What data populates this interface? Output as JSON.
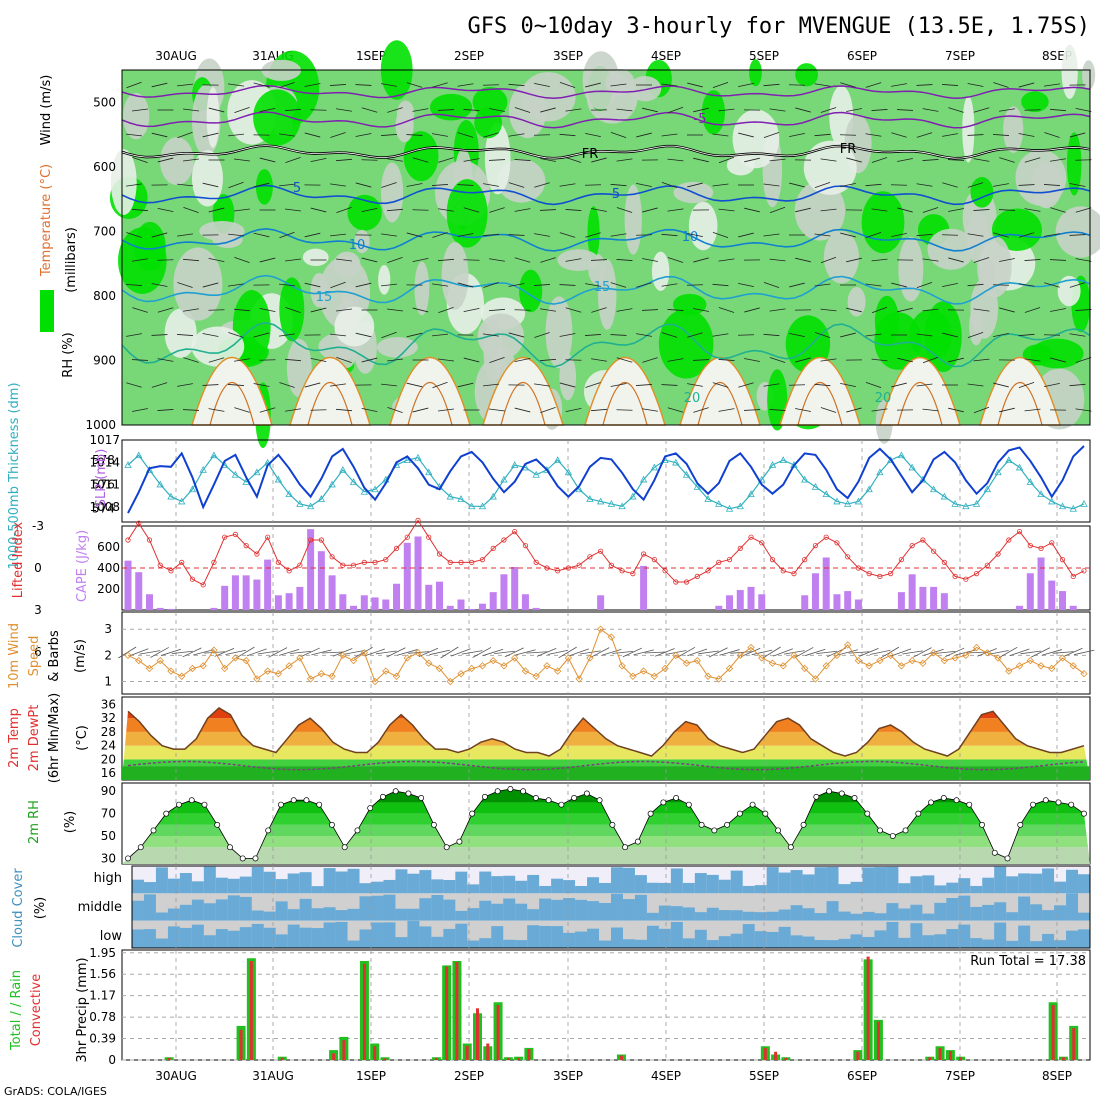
{
  "title": "GFS 0~10day 3-hourly for MVENGUE (13.5E, 1.75S)",
  "footer": "GrADS: COLA/IGES",
  "dates": [
    "30AUG",
    "31AUG",
    "1SEP",
    "2SEP",
    "3SEP",
    "4SEP",
    "5SEP",
    "6SEP",
    "7SEP",
    "8SEP"
  ],
  "colors": {
    "green_bright": "#00e000",
    "green_mid": "#78d878",
    "grey_light": "#c8d2c8",
    "cloud_blue": "#6aaad6",
    "cloud_grey": "#d0d0d0",
    "cloud_pale": "#f0eef8",
    "cape": "#c080f0",
    "lifted": "#e03030",
    "wind10": "#e09030",
    "thickness": "#30b0c0",
    "slp": "#1040d0",
    "precip_total": "#20c020",
    "precip_conv": "#e03030"
  },
  "chart_data": [
    {
      "panel": "upper-air",
      "type": "heatmap",
      "ylabel_parts": [
        "RH (%)",
        "Temperature (°C)",
        "Wind (m/s)"
      ],
      "ylabel_units": "(millibars)",
      "yticks": [
        "500",
        "600",
        "700",
        "800",
        "900",
        "1000"
      ],
      "ylim": [
        1000,
        450
      ],
      "contour_labels": [
        "-5",
        "FR",
        "FR",
        "5",
        "5",
        "10",
        "10",
        "15",
        "15",
        "20",
        "20"
      ]
    },
    {
      "panel": "thickness-slp",
      "type": "line",
      "ylabel_left": "1000-500mb Thickness (dm)",
      "ylabel_right": "SLP (mb)",
      "yticks_left": [
        "578",
        "576",
        "574"
      ],
      "yticks_right": [
        "1017",
        "1014",
        "1011",
        "1008"
      ],
      "series": [
        {
          "name": "Thickness",
          "values": [
            577.6,
            578.4,
            577.2,
            576.0,
            575.0,
            574.6,
            575.6,
            577.2,
            578.4,
            577.6,
            576.8,
            576.2,
            577.0,
            577.8,
            576.4,
            575.2,
            574.4,
            574.2,
            574.8,
            576.0,
            577.2,
            576.2,
            575.4,
            575.6,
            576.4,
            577.6,
            578.0,
            578.2,
            577.0,
            575.8,
            575.0,
            574.8,
            574.2,
            574.2,
            575.0,
            576.4,
            577.6,
            577.4,
            576.8,
            577.2,
            578.0,
            577.0,
            575.6,
            574.8,
            574.6,
            574.4,
            574.2,
            575.0,
            576.4,
            577.4,
            578.0,
            577.8,
            576.8,
            575.8,
            574.8,
            574.4,
            574.0,
            574.2,
            575.2,
            576.4,
            577.6,
            578.0,
            577.6,
            576.4,
            575.8,
            575.2,
            574.6,
            574.4,
            574.6,
            575.6,
            577.0,
            578.0,
            578.4,
            577.4,
            576.4,
            575.6,
            575.0,
            574.4,
            574.2,
            574.4,
            575.6,
            577.0,
            578.0,
            577.4,
            576.2,
            575.2,
            574.6,
            574.2,
            574.0,
            574.4
          ]
        },
        {
          "name": "SLP",
          "values": [
            1007.2,
            1010.0,
            1013.2,
            1013.5,
            1013.4,
            1015.2,
            1012.0,
            1008.0,
            1011.0,
            1014.2,
            1015.0,
            1012.0,
            1009.4,
            1013.6,
            1015.0,
            1013.2,
            1011.0,
            1009.4,
            1011.8,
            1014.8,
            1015.8,
            1013.4,
            1010.6,
            1009.0,
            1011.2,
            1014.0,
            1014.8,
            1013.2,
            1011.0,
            1010.4,
            1012.8,
            1014.8,
            1015.4,
            1014.0,
            1011.8,
            1010.0,
            1011.4,
            1013.8,
            1014.4,
            1013.0,
            1010.8,
            1009.4,
            1010.8,
            1013.4,
            1014.6,
            1014.4,
            1012.6,
            1010.4,
            1009.0,
            1011.6,
            1014.8,
            1015.2,
            1013.8,
            1011.2,
            1009.8,
            1011.2,
            1014.2,
            1015.2,
            1013.4,
            1011.0,
            1009.8,
            1011.0,
            1013.6,
            1015.2,
            1015.0,
            1013.0,
            1010.4,
            1009.2,
            1011.4,
            1014.6,
            1015.8,
            1014.4,
            1012.2,
            1010.0,
            1011.6,
            1014.4,
            1015.4,
            1014.0,
            1011.6,
            1009.8,
            1011.2,
            1014.0,
            1015.6,
            1016.0,
            1014.2,
            1012.0,
            1009.4,
            1011.6,
            1014.8,
            1016.2
          ]
        }
      ]
    },
    {
      "panel": "cape-lifted",
      "type": "bar",
      "ylabel_left": "Lifted Index",
      "ylabel_right": "CAPE (J/kg)",
      "yticks_left": [
        "-3",
        "0",
        "3",
        "6"
      ],
      "yticks_right": [
        "600",
        "400",
        "200"
      ],
      "cape_values": [
        470,
        360,
        150,
        20,
        10,
        0,
        0,
        0,
        20,
        230,
        330,
        330,
        290,
        480,
        140,
        160,
        220,
        770,
        560,
        330,
        150,
        40,
        140,
        120,
        100,
        250,
        640,
        700,
        240,
        270,
        40,
        100,
        10,
        60,
        170,
        340,
        410,
        150,
        20,
        0,
        0,
        0,
        0,
        0,
        140,
        0,
        0,
        0,
        420,
        0,
        0,
        0,
        0,
        0,
        0,
        40,
        140,
        190,
        220,
        150,
        0,
        0,
        0,
        140,
        350,
        500,
        150,
        180,
        100,
        0,
        0,
        0,
        170,
        340,
        220,
        220,
        160,
        0,
        0,
        0,
        0,
        0,
        0,
        40,
        350,
        500,
        280,
        180,
        40,
        0
      ],
      "lifted_values": [
        -2.0,
        -3.2,
        -2.0,
        -0.2,
        0.2,
        -0.4,
        0.8,
        1.2,
        -0.4,
        -2.2,
        -2.4,
        -1.6,
        -1.0,
        -2.2,
        -0.4,
        0.2,
        -0.2,
        -2.0,
        -2.0,
        -0.8,
        -0.2,
        -0.2,
        -0.4,
        -0.4,
        -0.6,
        -1.4,
        -2.2,
        -3.4,
        -2.2,
        -1.0,
        -0.4,
        -0.4,
        -0.4,
        -0.6,
        -1.4,
        -2.0,
        -2.6,
        -1.6,
        -0.4,
        0.0,
        0.2,
        0.0,
        -0.2,
        -0.8,
        -1.2,
        -0.2,
        0.2,
        0.4,
        -1.0,
        -0.6,
        0.2,
        1.0,
        1.0,
        0.6,
        0.2,
        -0.4,
        -0.6,
        -1.4,
        -2.2,
        -1.8,
        -0.6,
        0.2,
        0.4,
        -0.6,
        -1.6,
        -2.2,
        -1.8,
        -0.8,
        0.0,
        0.4,
        0.6,
        0.4,
        -0.6,
        -1.6,
        -2.0,
        -1.2,
        -0.4,
        0.6,
        0.8,
        0.4,
        -0.2,
        -1.0,
        -2.0,
        -2.6,
        -1.6,
        -1.4,
        -1.8,
        -0.6,
        0.6,
        0.2
      ]
    },
    {
      "panel": "wind10",
      "type": "line",
      "ylabel": "10m Wind Speed & Barbs (m/s)",
      "yticks": [
        "3",
        "2",
        "1"
      ],
      "values": [
        2.0,
        1.8,
        1.5,
        1.8,
        1.4,
        1.2,
        1.5,
        1.6,
        2.2,
        1.5,
        1.9,
        1.8,
        1.1,
        1.4,
        1.3,
        1.6,
        1.9,
        1.1,
        1.3,
        1.2,
        2.0,
        1.8,
        2.1,
        1.0,
        1.4,
        1.2,
        1.9,
        2.1,
        1.7,
        1.5,
        1.0,
        1.3,
        1.5,
        1.6,
        1.8,
        1.6,
        1.9,
        1.4,
        1.2,
        1.6,
        1.4,
        1.9,
        1.1,
        1.9,
        3.0,
        2.7,
        1.6,
        1.2,
        1.4,
        1.2,
        1.5,
        2.0,
        1.7,
        1.8,
        1.2,
        1.1,
        1.5,
        2.0,
        2.3,
        1.9,
        1.7,
        1.6,
        2.0,
        1.5,
        1.1,
        1.6,
        2.0,
        2.4,
        1.8,
        1.6,
        1.8,
        2.0,
        1.6,
        1.8,
        1.7,
        2.1,
        1.8,
        1.9,
        2.0,
        2.3,
        2.1,
        1.9,
        1.4,
        1.6,
        1.8,
        1.6,
        1.5,
        1.9,
        1.6,
        1.3
      ]
    },
    {
      "panel": "temp2m",
      "type": "area",
      "ylabel": "2m Temp 2m DewPt (6hr Min/Max) (°C)",
      "yticks": [
        "36",
        "32",
        "28",
        "24",
        "20",
        "16"
      ],
      "temp_values": [
        34,
        31,
        27,
        24,
        23,
        23,
        26,
        32,
        35,
        33,
        27,
        24,
        23,
        22,
        26,
        30,
        32,
        29,
        25,
        23,
        22,
        22,
        25,
        30,
        33,
        30,
        26,
        23,
        23,
        22,
        23,
        25,
        26,
        25,
        23,
        22,
        22,
        21,
        23,
        28,
        32,
        29,
        26,
        24,
        23,
        22,
        21,
        24,
        28,
        31,
        30,
        26,
        24,
        23,
        22,
        23,
        27,
        31,
        32,
        30,
        26,
        24,
        22,
        21,
        22,
        25,
        29,
        30,
        28,
        25,
        23,
        22,
        21,
        23,
        28,
        33,
        34,
        30,
        26,
        24,
        23,
        22,
        22,
        23,
        24
      ]
    },
    {
      "panel": "rh2m",
      "type": "area",
      "ylabel": "2m RH (%)",
      "yticks": [
        "90",
        "70",
        "50",
        "30"
      ],
      "values": [
        30,
        40,
        55,
        70,
        78,
        82,
        78,
        60,
        40,
        30,
        30,
        55,
        78,
        82,
        82,
        78,
        60,
        40,
        55,
        75,
        85,
        90,
        88,
        84,
        60,
        40,
        45,
        70,
        85,
        90,
        92,
        90,
        84,
        82,
        78,
        84,
        88,
        82,
        60,
        40,
        45,
        70,
        80,
        84,
        78,
        60,
        55,
        60,
        70,
        78,
        70,
        55,
        40,
        60,
        85,
        90,
        88,
        84,
        70,
        55,
        50,
        55,
        70,
        80,
        84,
        82,
        78,
        60,
        35,
        30,
        60,
        78,
        82,
        80,
        78,
        70
      ]
    },
    {
      "panel": "cloud",
      "type": "heatmap",
      "ylabel": "Cloud Cover (%)",
      "levels": [
        "high",
        "middle",
        "low"
      ]
    },
    {
      "panel": "precip",
      "type": "bar",
      "ylabel_left": "Total / Rain Convective",
      "ylabel_right": "3hr Precip (mm)",
      "yticks": [
        "1.95",
        "1.56",
        "1.17",
        "0.78",
        "0.39",
        "0"
      ],
      "annotation": "Run Total = 17.38",
      "total_values": [
        0,
        0,
        0,
        0,
        0.05,
        0,
        0,
        0,
        0,
        0,
        0,
        0.62,
        1.85,
        0,
        0,
        0.06,
        0,
        0,
        0,
        0,
        0.18,
        0.42,
        0,
        1.8,
        0.3,
        0.05,
        0,
        0,
        0,
        0,
        0.05,
        1.72,
        1.8,
        0.3,
        0.85,
        0.25,
        1.05,
        0.05,
        0.06,
        0.22,
        0,
        0,
        0,
        0,
        0,
        0,
        0,
        0,
        0.1,
        0,
        0,
        0,
        0,
        0,
        0,
        0,
        0,
        0,
        0,
        0,
        0,
        0,
        0.25,
        0.1,
        0.05,
        0,
        0,
        0,
        0,
        0,
        0,
        0.18,
        1.83,
        0.73,
        0,
        0,
        0,
        0,
        0.06,
        0.25,
        0.18,
        0.06,
        0,
        0,
        0,
        0,
        0,
        0,
        0,
        0,
        1.05,
        0.06,
        0.62,
        0
      ],
      "conv_values": [
        0,
        0,
        0,
        0,
        0.04,
        0,
        0,
        0,
        0,
        0,
        0,
        0.55,
        1.8,
        0,
        0,
        0.04,
        0,
        0,
        0,
        0,
        0.12,
        0.36,
        0,
        1.75,
        0.25,
        0.03,
        0,
        0,
        0,
        0,
        0.04,
        1.7,
        1.78,
        0.26,
        0.94,
        0.3,
        1.0,
        0.04,
        0.04,
        0.2,
        0,
        0,
        0,
        0,
        0,
        0,
        0,
        0,
        0.08,
        0,
        0,
        0,
        0,
        0,
        0,
        0,
        0,
        0,
        0,
        0,
        0,
        0,
        0.22,
        0.15,
        0.04,
        0,
        0,
        0,
        0,
        0,
        0,
        0.15,
        1.88,
        0.7,
        0,
        0,
        0,
        0,
        0.05,
        0.22,
        0.16,
        0.05,
        0,
        0,
        0,
        0,
        0,
        0,
        0,
        0,
        1.0,
        0.05,
        0.58,
        0
      ]
    }
  ]
}
